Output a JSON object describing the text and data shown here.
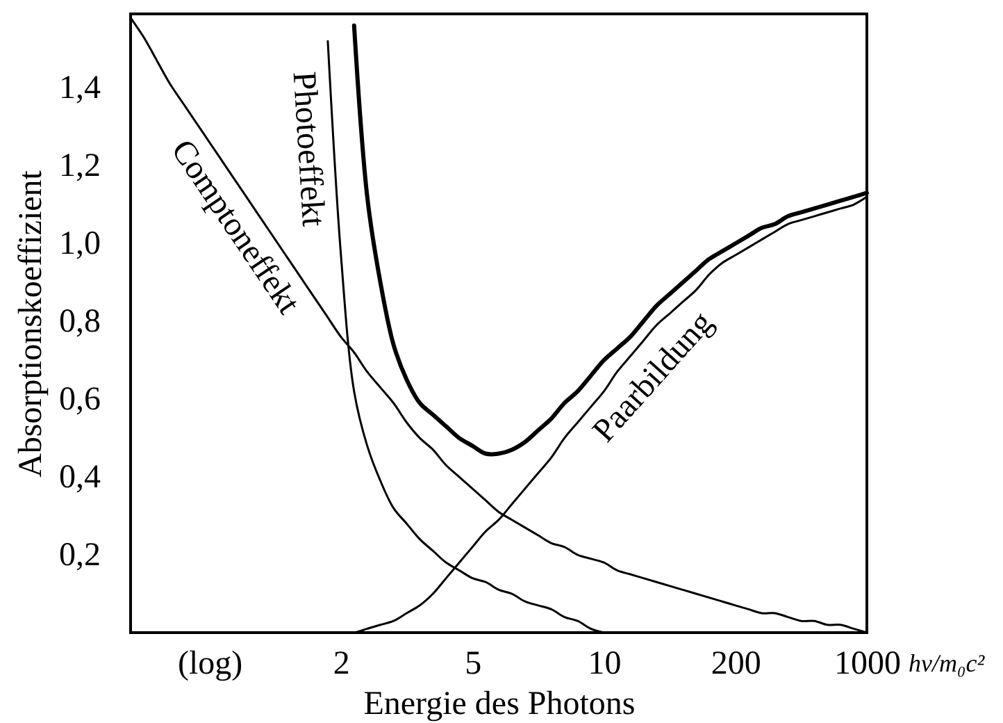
{
  "chart_data": {
    "type": "line",
    "xlabel": "Energie des Photons",
    "ylabel": "Absorptionskoeffizient",
    "annotations": [
      "hν/m₀c²"
    ],
    "categories": [
      null,
      null,
      null,
      null,
      null,
      null,
      "(log)",
      null,
      null,
      null,
      null,
      null,
      null,
      null,
      null,
      null,
      "2",
      null,
      null,
      null,
      null,
      null,
      null,
      null,
      null,
      null,
      "5",
      null,
      null,
      null,
      null,
      null,
      null,
      null,
      null,
      null,
      "10",
      null,
      null,
      null,
      null,
      null,
      null,
      null,
      null,
      null,
      "200",
      null,
      null,
      null,
      null,
      null,
      null,
      null,
      null,
      null,
      "1000"
    ],
    "ylim": [
      0,
      1.59
    ],
    "yticks": [
      {
        "value": 0.2,
        "label": "0,2"
      },
      {
        "value": 0.4,
        "label": "0,4"
      },
      {
        "value": 0.6,
        "label": "0,6"
      },
      {
        "value": 0.8,
        "label": "0,8"
      },
      {
        "value": 1.0,
        "label": "1,0"
      },
      {
        "value": 1.2,
        "label": "1,2"
      },
      {
        "value": 1.4,
        "label": "1,4"
      }
    ],
    "series": [
      {
        "name": "Comptoneffekt",
        "color": "#000000",
        "values": [
          1.58,
          1.53,
          1.47,
          1.41,
          1.36,
          1.31,
          1.26,
          1.21,
          1.16,
          1.11,
          1.06,
          1.01,
          0.96,
          0.91,
          0.86,
          0.81,
          0.76,
          0.72,
          0.67,
          0.63,
          0.59,
          0.54,
          0.5,
          0.47,
          0.43,
          0.4,
          0.37,
          0.34,
          0.31,
          0.29,
          0.27,
          0.25,
          0.23,
          0.22,
          0.2,
          0.19,
          0.18,
          0.16,
          0.15,
          0.14,
          0.13,
          0.12,
          0.11,
          0.1,
          0.09,
          0.08,
          0.07,
          0.06,
          0.05,
          0.05,
          0.04,
          0.03,
          0.03,
          0.02,
          0.02,
          0.01,
          0
        ]
      },
      {
        "name": "Photoeffekt",
        "color": "#000000",
        "values": [
          null,
          null,
          null,
          null,
          null,
          null,
          null,
          null,
          null,
          null,
          null,
          null,
          null,
          null,
          null,
          1.52,
          0.97,
          0.62,
          0.48,
          0.39,
          0.32,
          0.28,
          0.24,
          0.21,
          0.18,
          0.16,
          0.14,
          0.13,
          0.11,
          0.1,
          0.08,
          0.07,
          0.06,
          0.04,
          0.03,
          0.01,
          0,
          null,
          null,
          null,
          null,
          null,
          null,
          null,
          null,
          null,
          null,
          null,
          null,
          null,
          null,
          null,
          null,
          null,
          null,
          null,
          null
        ]
      },
      {
        "color": "#000000",
        "values": [
          null,
          null,
          null,
          null,
          null,
          null,
          null,
          null,
          null,
          null,
          null,
          null,
          null,
          null,
          null,
          null,
          null,
          1.56,
          1.12,
          0.9,
          0.74,
          0.65,
          0.59,
          0.56,
          0.53,
          0.5,
          0.48,
          0.46,
          0.46,
          0.47,
          0.49,
          0.52,
          0.55,
          0.59,
          0.62,
          0.66,
          0.7,
          0.73,
          0.76,
          0.8,
          0.84,
          0.87,
          0.9,
          0.93,
          0.96,
          0.98,
          1.0,
          1.02,
          1.04,
          1.05,
          1.07,
          1.08,
          1.09,
          1.1,
          1.11,
          1.12,
          1.13
        ]
      },
      {
        "name": "Paarbildung",
        "color": "#000000",
        "values": [
          null,
          null,
          null,
          null,
          null,
          null,
          null,
          null,
          null,
          null,
          null,
          null,
          null,
          null,
          null,
          null,
          0,
          0,
          0.01,
          0.02,
          0.03,
          0.05,
          0.07,
          0.1,
          0.14,
          0.18,
          0.22,
          0.26,
          0.29,
          0.33,
          0.37,
          0.41,
          0.45,
          0.5,
          0.54,
          0.58,
          0.62,
          0.67,
          0.71,
          0.75,
          0.79,
          0.82,
          0.85,
          0.88,
          0.92,
          0.95,
          0.97,
          0.99,
          1.01,
          1.03,
          1.05,
          1.06,
          1.07,
          1.08,
          1.09,
          1.1,
          1.12
        ]
      }
    ]
  }
}
